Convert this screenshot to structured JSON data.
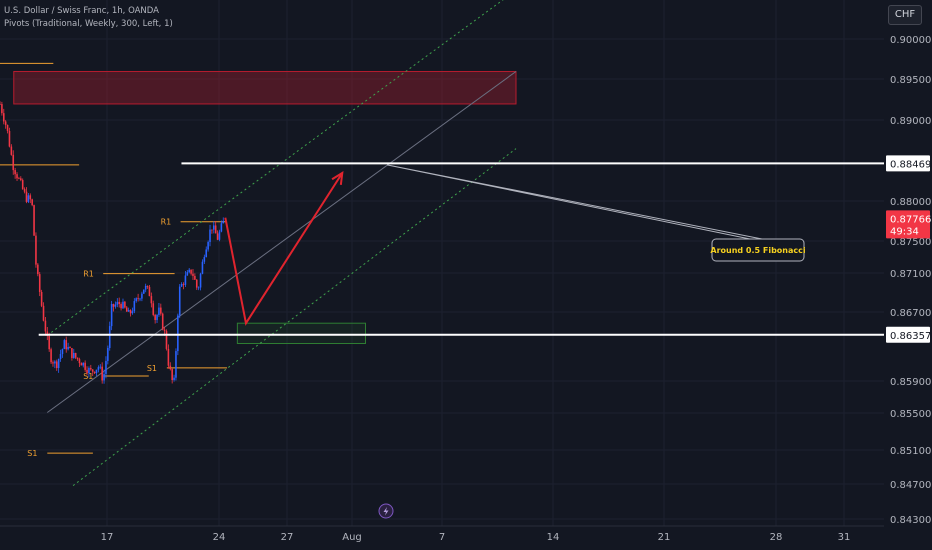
{
  "header": {
    "title": "U.S. Dollar / Swiss Franc, 1h, OANDA",
    "indicator": "Pivots (Traditional, Weekly, 300, Left, 1)",
    "currency": "CHF"
  },
  "colors": {
    "background": "#131722",
    "pivot": "#f0a030",
    "channel": "#3fa34d",
    "arrow": "#e0242e",
    "zone_red": "#b71c2e",
    "zone_green": "#2e7d32",
    "price_badge": "#f23645",
    "candle_up": "#2962ff",
    "candle_down": "#f23645"
  },
  "annotation": {
    "text": "Around 0.5 Fibonacci"
  },
  "countdown": "49:34",
  "replay_icon": "lightning-icon",
  "chart_data": {
    "type": "candlestick",
    "symbol": "USDCHF",
    "interval": "1h",
    "x_tick_labels": [
      "17",
      "24",
      "27",
      "Aug",
      "7",
      "14",
      "21",
      "28",
      "31"
    ],
    "y_tick_labels": [
      "0.90000",
      "0.89500",
      "0.89000",
      "0.88000",
      "0.87500",
      "0.87100",
      "0.86700",
      "0.85900",
      "0.85500",
      "0.85100",
      "0.84700",
      "0.84300"
    ],
    "ylim": [
      0.8425,
      0.9025
    ],
    "price_path": [
      {
        "d": 0,
        "p": 0.892
      },
      {
        "d": 0.8,
        "p": 0.889
      },
      {
        "d": 1.5,
        "p": 0.8845
      },
      {
        "d": 3.0,
        "p": 0.8805
      },
      {
        "d": 3.7,
        "p": 0.88
      },
      {
        "d": 4.2,
        "p": 0.872
      },
      {
        "d": 5.0,
        "p": 0.866
      },
      {
        "d": 5.8,
        "p": 0.861
      },
      {
        "d": 6.5,
        "p": 0.8598
      },
      {
        "d": 7.5,
        "p": 0.8625
      },
      {
        "d": 8.5,
        "p": 0.861
      },
      {
        "d": 9.5,
        "p": 0.8602
      },
      {
        "d": 10.5,
        "p": 0.859
      },
      {
        "d": 11.5,
        "p": 0.8597
      },
      {
        "d": 12.0,
        "p": 0.858
      },
      {
        "d": 12.6,
        "p": 0.8625
      },
      {
        "d": 13.0,
        "p": 0.867
      },
      {
        "d": 14.0,
        "p": 0.8675
      },
      {
        "d": 15.0,
        "p": 0.866
      },
      {
        "d": 16.0,
        "p": 0.868
      },
      {
        "d": 16.8,
        "p": 0.8695
      },
      {
        "d": 17.5,
        "p": 0.8685
      },
      {
        "d": 18.0,
        "p": 0.8655
      },
      {
        "d": 18.5,
        "p": 0.8665
      },
      {
        "d": 19.2,
        "p": 0.8635
      },
      {
        "d": 19.6,
        "p": 0.86
      },
      {
        "d": 20.2,
        "p": 0.857
      },
      {
        "d": 20.5,
        "p": 0.8625
      },
      {
        "d": 20.8,
        "p": 0.869
      },
      {
        "d": 21.5,
        "p": 0.8705
      },
      {
        "d": 22.3,
        "p": 0.8715
      },
      {
        "d": 23.0,
        "p": 0.869
      },
      {
        "d": 23.8,
        "p": 0.874
      },
      {
        "d": 24.6,
        "p": 0.877
      },
      {
        "d": 25.3,
        "p": 0.8755
      },
      {
        "d": 26.0,
        "p": 0.8775
      }
    ],
    "last_price": 0.87766,
    "pivots": [
      {
        "label": "R1",
        "price": 0.8845,
        "d0": -0.5,
        "d1": 9.2
      },
      {
        "label": "R1",
        "price": 0.8711,
        "d0": 12.0,
        "d1": 20.3
      },
      {
        "label": "R1",
        "price": 0.8775,
        "d0": 21.0,
        "d1": 26.4
      },
      {
        "label": "S1",
        "price": 0.8585,
        "d0": 12.0,
        "d1": 17.3
      },
      {
        "label": "S1",
        "price": 0.8595,
        "d0": 19.4,
        "d1": 26.4
      },
      {
        "label": "S1",
        "price": 0.849,
        "d0": 5.5,
        "d1": 10.8
      },
      {
        "label": "",
        "price": 0.897,
        "d0": -0.5,
        "d1": 6.2
      }
    ],
    "horizontal_levels": [
      {
        "price": 0.88469,
        "label": "0.88469",
        "d0": 21.1
      },
      {
        "price": 0.86357,
        "label": "0.86357",
        "d0": 4.5
      }
    ],
    "channel": {
      "upper": [
        {
          "d": 5.5,
          "p": 0.8635
        },
        {
          "d": 60,
          "p": 0.906
        }
      ],
      "mid": [
        {
          "d": 5.5,
          "p": 0.854
        },
        {
          "d": 60,
          "p": 0.896
        }
      ],
      "lower": [
        {
          "d": 8.5,
          "p": 0.845
        },
        {
          "d": 60,
          "p": 0.8865
        }
      ]
    },
    "zones": [
      {
        "color": "red",
        "d0": 1.6,
        "d1": 60,
        "p0": 0.892,
        "p1": 0.896
      },
      {
        "color": "green",
        "d0": 27.6,
        "d1": 42.5,
        "p0": 0.8625,
        "p1": 0.865
      }
    ],
    "forecast_arrow": [
      {
        "d": 26.2,
        "p": 0.878
      },
      {
        "d": 28.6,
        "p": 0.865
      },
      {
        "d": 39.8,
        "p": 0.8835
      }
    ],
    "annotation_pointer": [
      {
        "d": 45.0,
        "p": 0.8845
      },
      {
        "d": 47.4,
        "p": 0.8755
      }
    ]
  }
}
